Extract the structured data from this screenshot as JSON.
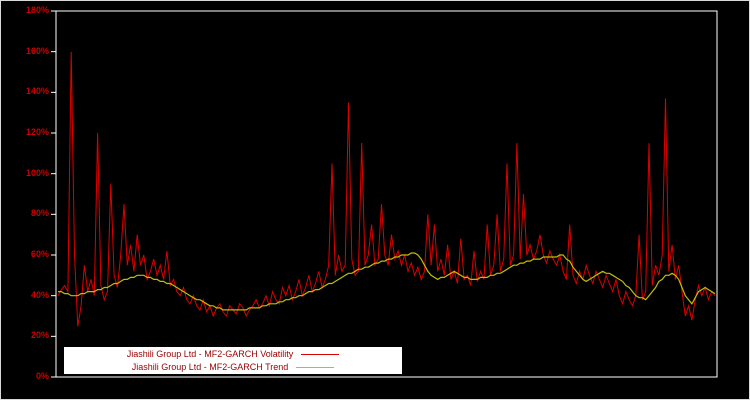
{
  "figure": {
    "background": "#000000",
    "frame_color": "#ffffff",
    "tick_label_color": "#cc0000"
  },
  "legend": {
    "background": "#ffffff",
    "text_color": "#990000"
  },
  "chart_data": {
    "type": "line",
    "title": "",
    "xlabel": "",
    "ylabel": "",
    "grid": false,
    "legend_position": "bottom-left",
    "ylim": [
      0,
      180
    ],
    "yticks": [
      "0%",
      "20%",
      "40%",
      "60%",
      "80%",
      "100%",
      "120%",
      "140%",
      "160%",
      "180%"
    ],
    "ytick_values": [
      0,
      20,
      40,
      60,
      80,
      100,
      120,
      140,
      160,
      180
    ],
    "series": [
      {
        "name": "Jiashili Group Ltd - MF2-GARCH Volatility",
        "color": "#dd0000",
        "values": [
          40,
          43,
          45,
          42,
          160,
          60,
          25,
          35,
          55,
          42,
          48,
          40,
          120,
          45,
          38,
          42,
          95,
          50,
          44,
          60,
          85,
          55,
          65,
          52,
          70,
          55,
          60,
          48,
          52,
          58,
          50,
          55,
          48,
          62,
          45,
          48,
          42,
          40,
          44,
          38,
          36,
          40,
          35,
          33,
          38,
          32,
          35,
          30,
          34,
          36,
          32,
          30,
          35,
          33,
          31,
          36,
          34,
          30,
          33,
          35,
          38,
          34,
          36,
          40,
          35,
          42,
          38,
          36,
          44,
          40,
          45,
          38,
          42,
          48,
          40,
          44,
          50,
          42,
          46,
          52,
          44,
          48,
          55,
          105,
          50,
          60,
          52,
          55,
          135,
          58,
          50,
          52,
          115,
          55,
          60,
          75,
          55,
          58,
          85,
          60,
          55,
          70,
          58,
          62,
          55,
          60,
          52,
          56,
          50,
          54,
          48,
          52,
          80,
          55,
          75,
          52,
          58,
          50,
          65,
          48,
          52,
          46,
          68,
          48,
          50,
          45,
          62,
          47,
          52,
          48,
          75,
          50,
          55,
          80,
          52,
          58,
          105,
          55,
          60,
          115,
          58,
          90,
          60,
          65,
          58,
          62,
          70,
          60,
          56,
          62,
          58,
          55,
          60,
          52,
          48,
          75,
          50,
          46,
          52,
          48,
          55,
          50,
          46,
          52,
          48,
          44,
          50,
          46,
          42,
          48,
          40,
          36,
          42,
          38,
          35,
          40,
          70,
          38,
          42,
          115,
          45,
          55,
          50,
          60,
          137,
          52,
          65,
          48,
          55,
          42,
          30,
          35,
          28,
          38,
          45,
          40,
          44,
          38,
          42,
          40
        ]
      },
      {
        "name": "Jiashili Group Ltd - MF2-GARCH Trend",
        "color": "#bfbf00",
        "values": [
          42,
          42,
          41,
          41,
          40,
          40,
          40,
          41,
          41,
          42,
          42,
          42,
          43,
          43,
          44,
          44,
          45,
          46,
          46,
          47,
          48,
          48,
          49,
          49,
          50,
          50,
          50,
          49,
          49,
          48,
          48,
          47,
          47,
          46,
          46,
          45,
          44,
          43,
          42,
          41,
          40,
          39,
          38,
          38,
          37,
          36,
          35,
          35,
          34,
          34,
          33,
          33,
          33,
          33,
          33,
          33,
          33,
          33,
          34,
          34,
          34,
          34,
          35,
          35,
          36,
          36,
          36,
          37,
          37,
          38,
          38,
          39,
          39,
          40,
          40,
          41,
          42,
          42,
          43,
          43,
          44,
          45,
          46,
          46,
          47,
          48,
          49,
          50,
          51,
          51,
          52,
          53,
          53,
          54,
          54,
          55,
          56,
          56,
          57,
          57,
          58,
          58,
          59,
          59,
          60,
          60,
          60,
          61,
          61,
          60,
          58,
          55,
          52,
          50,
          49,
          48,
          49,
          49,
          50,
          51,
          52,
          51,
          50,
          49,
          49,
          48,
          48,
          48,
          49,
          49,
          49,
          50,
          50,
          51,
          51,
          52,
          53,
          54,
          55,
          55,
          56,
          56,
          57,
          57,
          58,
          58,
          58,
          59,
          59,
          59,
          59,
          59,
          60,
          60,
          58,
          57,
          54,
          52,
          50,
          48,
          47,
          48,
          49,
          50,
          51,
          52,
          51,
          51,
          50,
          49,
          48,
          47,
          45,
          44,
          42,
          40,
          39,
          39,
          38,
          40,
          42,
          44,
          47,
          48,
          50,
          50,
          51,
          50,
          48,
          44,
          40,
          38,
          36,
          39,
          42,
          43,
          44,
          43,
          42,
          41
        ]
      }
    ]
  }
}
